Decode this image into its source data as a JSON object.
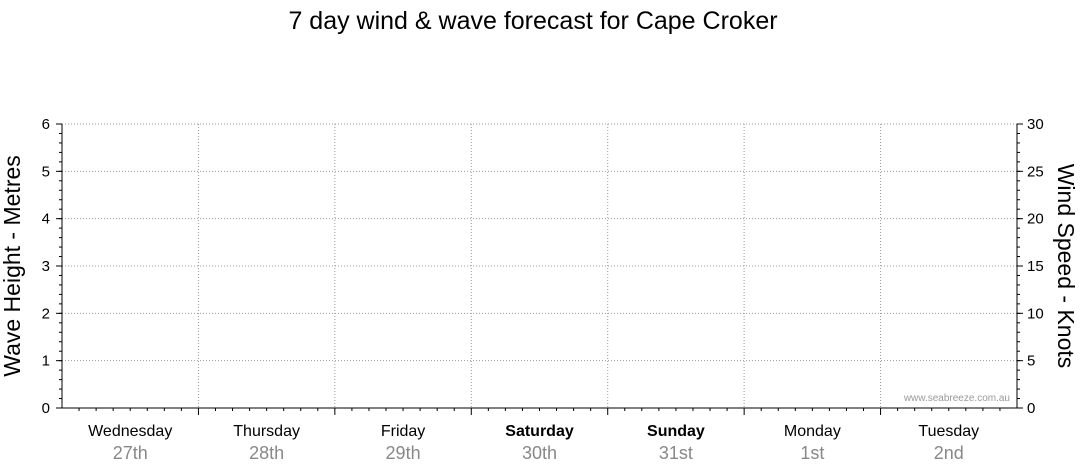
{
  "chart_data": {
    "type": "line",
    "title": "7 day wind & wave forecast for Cape Croker",
    "ylabel_left": "Wave Height - Metres",
    "ylabel_right": "Wind Speed - Knots",
    "ylim_left": [
      0,
      6
    ],
    "ylim_right": [
      0,
      30
    ],
    "yticks_left": [
      "0",
      "1",
      "2",
      "3",
      "4",
      "5",
      "6"
    ],
    "yticks_right": [
      "0",
      "5",
      "10",
      "15",
      "20",
      "25",
      "30"
    ],
    "days": [
      {
        "name": "Wednesday",
        "date": "27th",
        "bold": false
      },
      {
        "name": "Thursday",
        "date": "28th",
        "bold": false
      },
      {
        "name": "Friday",
        "date": "29th",
        "bold": false
      },
      {
        "name": "Saturday",
        "date": "30th",
        "bold": true
      },
      {
        "name": "Sunday",
        "date": "31st",
        "bold": true
      },
      {
        "name": "Monday",
        "date": "1st",
        "bold": false
      },
      {
        "name": "Tuesday",
        "date": "2nd",
        "bold": false
      }
    ],
    "series": [],
    "grid": true,
    "watermark": "www.seabreeze.com.au"
  }
}
